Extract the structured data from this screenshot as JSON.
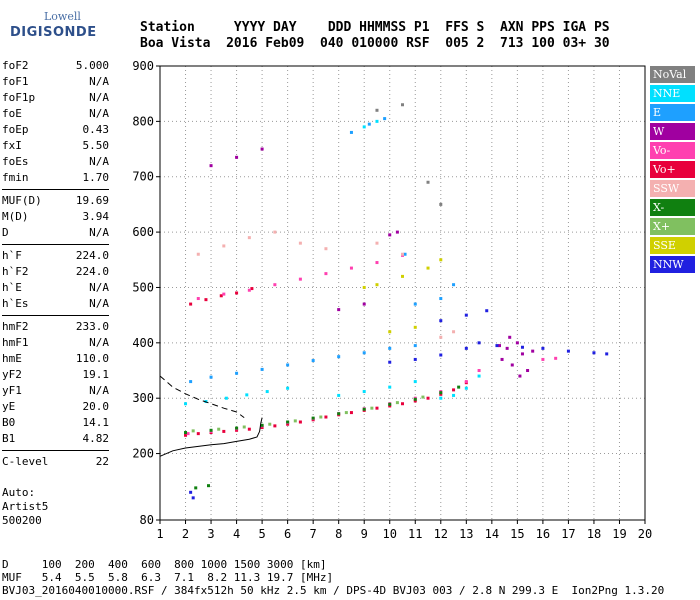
{
  "logo": {
    "top": "Lowell",
    "main": "DIGISONDE"
  },
  "header": {
    "line1": "Station     YYYY DAY    DDD HHMMSS P1  FFS S  AXN PPS IGA PS",
    "line2": "Boa Vista  2016 Feb09  040 010000 RSF  005 2  713 100 03+ 30"
  },
  "params": {
    "group1": [
      {
        "name": "foF2",
        "value": "5.000"
      },
      {
        "name": "foF1",
        "value": "N/A"
      },
      {
        "name": "foF1p",
        "value": "N/A"
      },
      {
        "name": "foE",
        "value": "N/A"
      },
      {
        "name": "foEp",
        "value": "0.43"
      },
      {
        "name": "fxI",
        "value": "5.50"
      },
      {
        "name": "foEs",
        "value": "N/A"
      },
      {
        "name": "fmin",
        "value": "1.70"
      }
    ],
    "group2": [
      {
        "name": "MUF(D)",
        "value": "19.69"
      },
      {
        "name": "M(D)",
        "value": "3.94"
      },
      {
        "name": "D",
        "value": "N/A"
      }
    ],
    "group3": [
      {
        "name": "h`F",
        "value": "224.0"
      },
      {
        "name": "h`F2",
        "value": "224.0"
      },
      {
        "name": "h`E",
        "value": "N/A"
      },
      {
        "name": "h`Es",
        "value": "N/A"
      }
    ],
    "group4": [
      {
        "name": "hmF2",
        "value": "233.0"
      },
      {
        "name": "hmF1",
        "value": "N/A"
      },
      {
        "name": "hmE",
        "value": "110.0"
      },
      {
        "name": "yF2",
        "value": "19.1"
      },
      {
        "name": "yF1",
        "value": "N/A"
      },
      {
        "name": "yE",
        "value": "20.0"
      },
      {
        "name": "B0",
        "value": "14.1"
      },
      {
        "name": "B1",
        "value": "4.82"
      }
    ],
    "group5": [
      {
        "name": "C-level",
        "value": "22"
      }
    ]
  },
  "auto_block": "Auto:\nArtist5\n500200",
  "legend": [
    {
      "label": "NoVal",
      "color": "#808080"
    },
    {
      "label": "NNE",
      "color": "#00e0ff"
    },
    {
      "label": "E",
      "color": "#1ea0ff"
    },
    {
      "label": "W",
      "color": "#a000a0"
    },
    {
      "label": "Vo-",
      "color": "#ff40b0"
    },
    {
      "label": "Vo+",
      "color": "#e8003c"
    },
    {
      "label": "SSW",
      "color": "#f4b0b0"
    },
    {
      "label": "X-",
      "color": "#108010"
    },
    {
      "label": "X+",
      "color": "#80c060"
    },
    {
      "label": "SSE",
      "color": "#d0d000"
    },
    {
      "label": "NNW",
      "color": "#2020e0"
    }
  ],
  "footer": {
    "line1": "D     100  200  400  600  800 1000 1500 3000 [km]",
    "line2": "MUF   5.4  5.5  5.8  6.3  7.1  8.2 11.3 19.7 [MHz]",
    "line3": "BVJ03_2016040010000.RSF / 384fx512h 50 kHz 2.5 km / DPS-4D BVJ03 003 / 2.8 N 299.3 E  Ion2Png 1.3.20"
  },
  "chart_data": {
    "type": "scatter",
    "title": "",
    "xlabel": "",
    "ylabel": "",
    "xlim": [
      1,
      20
    ],
    "ylim": [
      80,
      900
    ],
    "x_ticks": [
      1,
      2,
      3,
      4,
      5,
      6,
      7,
      8,
      9,
      10,
      11,
      12,
      13,
      14,
      15,
      16,
      17,
      18,
      19,
      20
    ],
    "y_ticks": [
      80,
      200,
      300,
      400,
      500,
      600,
      700,
      800,
      900
    ],
    "grid": "dotted",
    "series": [
      {
        "name": "Vo+",
        "color": "#e8003c",
        "points": [
          [
            2.0,
            233
          ],
          [
            2.5,
            236
          ],
          [
            3.0,
            238
          ],
          [
            3.5,
            240
          ],
          [
            4.0,
            242
          ],
          [
            4.5,
            244
          ],
          [
            5.0,
            247
          ],
          [
            5.5,
            250
          ],
          [
            6.0,
            253
          ],
          [
            6.5,
            257
          ],
          [
            7.0,
            261
          ],
          [
            7.5,
            266
          ],
          [
            8.0,
            270
          ],
          [
            8.5,
            274
          ],
          [
            9.0,
            278
          ],
          [
            9.5,
            282
          ],
          [
            10.0,
            286
          ],
          [
            10.5,
            290
          ],
          [
            11.0,
            295
          ],
          [
            11.5,
            300
          ],
          [
            12.0,
            307
          ],
          [
            12.5,
            315
          ],
          [
            13.0,
            328
          ],
          [
            2.2,
            470
          ],
          [
            2.8,
            478
          ],
          [
            3.4,
            485
          ],
          [
            4.0,
            490
          ],
          [
            4.6,
            498
          ]
        ]
      },
      {
        "name": "Vo-",
        "color": "#ff40b0",
        "points": [
          [
            2.1,
            236
          ],
          [
            3.0,
            240
          ],
          [
            4.0,
            245
          ],
          [
            5.0,
            250
          ],
          [
            6.0,
            256
          ],
          [
            7.0,
            263
          ],
          [
            8.0,
            272
          ],
          [
            9.0,
            281
          ],
          [
            10.0,
            290
          ],
          [
            11.0,
            300
          ],
          [
            12.0,
            312
          ],
          [
            13.0,
            330
          ],
          [
            13.5,
            350
          ],
          [
            16.0,
            370
          ],
          [
            16.5,
            372
          ],
          [
            2.5,
            480
          ],
          [
            3.5,
            488
          ],
          [
            4.5,
            495
          ],
          [
            5.5,
            505
          ],
          [
            6.5,
            515
          ],
          [
            7.5,
            525
          ],
          [
            8.5,
            535
          ],
          [
            9.5,
            545
          ],
          [
            10.5,
            558
          ]
        ]
      },
      {
        "name": "NNE",
        "color": "#00e0ff",
        "points": [
          [
            2.0,
            290
          ],
          [
            2.8,
            294
          ],
          [
            3.6,
            300
          ],
          [
            4.4,
            306
          ],
          [
            5.2,
            312
          ],
          [
            6.0,
            318
          ],
          [
            8.0,
            305
          ],
          [
            9.0,
            312
          ],
          [
            10.0,
            320
          ],
          [
            11.0,
            330
          ],
          [
            12.0,
            300
          ],
          [
            12.5,
            305
          ],
          [
            13.0,
            318
          ],
          [
            13.5,
            340
          ],
          [
            9.0,
            790
          ],
          [
            9.5,
            800
          ]
        ]
      },
      {
        "name": "E",
        "color": "#1ea0ff",
        "points": [
          [
            2.2,
            330
          ],
          [
            3.0,
            338
          ],
          [
            4.0,
            345
          ],
          [
            5.0,
            352
          ],
          [
            6.0,
            360
          ],
          [
            7.0,
            368
          ],
          [
            8.0,
            375
          ],
          [
            9.0,
            382
          ],
          [
            10.0,
            390
          ],
          [
            11.0,
            395
          ],
          [
            8.5,
            780
          ],
          [
            9.2,
            795
          ],
          [
            9.8,
            805
          ],
          [
            10.6,
            560
          ],
          [
            11.0,
            470
          ],
          [
            12.0,
            480
          ],
          [
            12.5,
            505
          ]
        ]
      },
      {
        "name": "W",
        "color": "#a000a0",
        "points": [
          [
            14.4,
            370
          ],
          [
            14.6,
            390
          ],
          [
            14.8,
            360
          ],
          [
            15.0,
            400
          ],
          [
            15.2,
            380
          ],
          [
            15.4,
            350
          ],
          [
            14.7,
            410
          ],
          [
            15.1,
            340
          ],
          [
            15.6,
            385
          ],
          [
            14.3,
            395
          ],
          [
            10.0,
            595
          ],
          [
            10.3,
            600
          ],
          [
            8.0,
            460
          ],
          [
            9.0,
            470
          ],
          [
            3.0,
            720
          ],
          [
            4.0,
            735
          ],
          [
            5.0,
            750
          ]
        ]
      },
      {
        "name": "SSW",
        "color": "#f4b0b0",
        "points": [
          [
            2.5,
            560
          ],
          [
            3.5,
            575
          ],
          [
            4.5,
            590
          ],
          [
            5.5,
            600
          ],
          [
            6.5,
            580
          ],
          [
            7.5,
            570
          ],
          [
            9.5,
            580
          ],
          [
            10.5,
            560
          ],
          [
            12.0,
            410
          ],
          [
            12.5,
            420
          ]
        ]
      },
      {
        "name": "X-",
        "color": "#108010",
        "points": [
          [
            2.0,
            238
          ],
          [
            3.0,
            242
          ],
          [
            4.0,
            246
          ],
          [
            5.0,
            251
          ],
          [
            6.0,
            257
          ],
          [
            7.0,
            264
          ],
          [
            8.0,
            272
          ],
          [
            9.0,
            280
          ],
          [
            10.0,
            289
          ],
          [
            11.0,
            298
          ],
          [
            12.0,
            310
          ],
          [
            12.7,
            320
          ],
          [
            2.4,
            138
          ],
          [
            2.9,
            142
          ]
        ]
      },
      {
        "name": "X+",
        "color": "#80c060",
        "points": [
          [
            2.3,
            241
          ],
          [
            3.3,
            244
          ],
          [
            4.3,
            248
          ],
          [
            5.3,
            253
          ],
          [
            6.3,
            259
          ],
          [
            7.3,
            266
          ],
          [
            8.3,
            274
          ],
          [
            9.3,
            282
          ],
          [
            10.3,
            292
          ],
          [
            11.3,
            302
          ]
        ]
      },
      {
        "name": "SSE",
        "color": "#d0d000",
        "points": [
          [
            10.0,
            420
          ],
          [
            11.0,
            428
          ],
          [
            9.0,
            500
          ],
          [
            9.5,
            505
          ],
          [
            10.5,
            520
          ],
          [
            11.5,
            535
          ],
          [
            12.0,
            550
          ]
        ]
      },
      {
        "name": "NNW",
        "color": "#2020e0",
        "points": [
          [
            10.0,
            365
          ],
          [
            11.0,
            370
          ],
          [
            12.0,
            378
          ],
          [
            13.0,
            390
          ],
          [
            13.5,
            400
          ],
          [
            12.0,
            440
          ],
          [
            13.0,
            450
          ],
          [
            13.8,
            458
          ],
          [
            14.2,
            395
          ],
          [
            15.2,
            392
          ],
          [
            16.0,
            390
          ],
          [
            17.0,
            385
          ],
          [
            18.0,
            382
          ],
          [
            18.5,
            380
          ],
          [
            2.2,
            130
          ],
          [
            2.3,
            120
          ]
        ]
      },
      {
        "name": "NoVal",
        "color": "#808080",
        "points": [
          [
            9.5,
            820
          ],
          [
            10.5,
            830
          ],
          [
            11.5,
            690
          ],
          [
            12.0,
            650
          ]
        ]
      }
    ],
    "profile_solid": [
      [
        1.0,
        195
      ],
      [
        1.5,
        205
      ],
      [
        2.0,
        210
      ],
      [
        2.5,
        213
      ],
      [
        3.0,
        216
      ],
      [
        3.5,
        218
      ],
      [
        4.0,
        222
      ],
      [
        4.5,
        226
      ],
      [
        4.8,
        230
      ],
      [
        4.9,
        240
      ],
      [
        4.95,
        255
      ],
      [
        5.0,
        265
      ]
    ],
    "profile_dashed": [
      [
        1.0,
        340
      ],
      [
        1.5,
        320
      ],
      [
        2.0,
        308
      ],
      [
        2.5,
        298
      ],
      [
        3.0,
        290
      ],
      [
        3.5,
        282
      ],
      [
        4.0,
        275
      ],
      [
        4.3,
        265
      ]
    ]
  }
}
